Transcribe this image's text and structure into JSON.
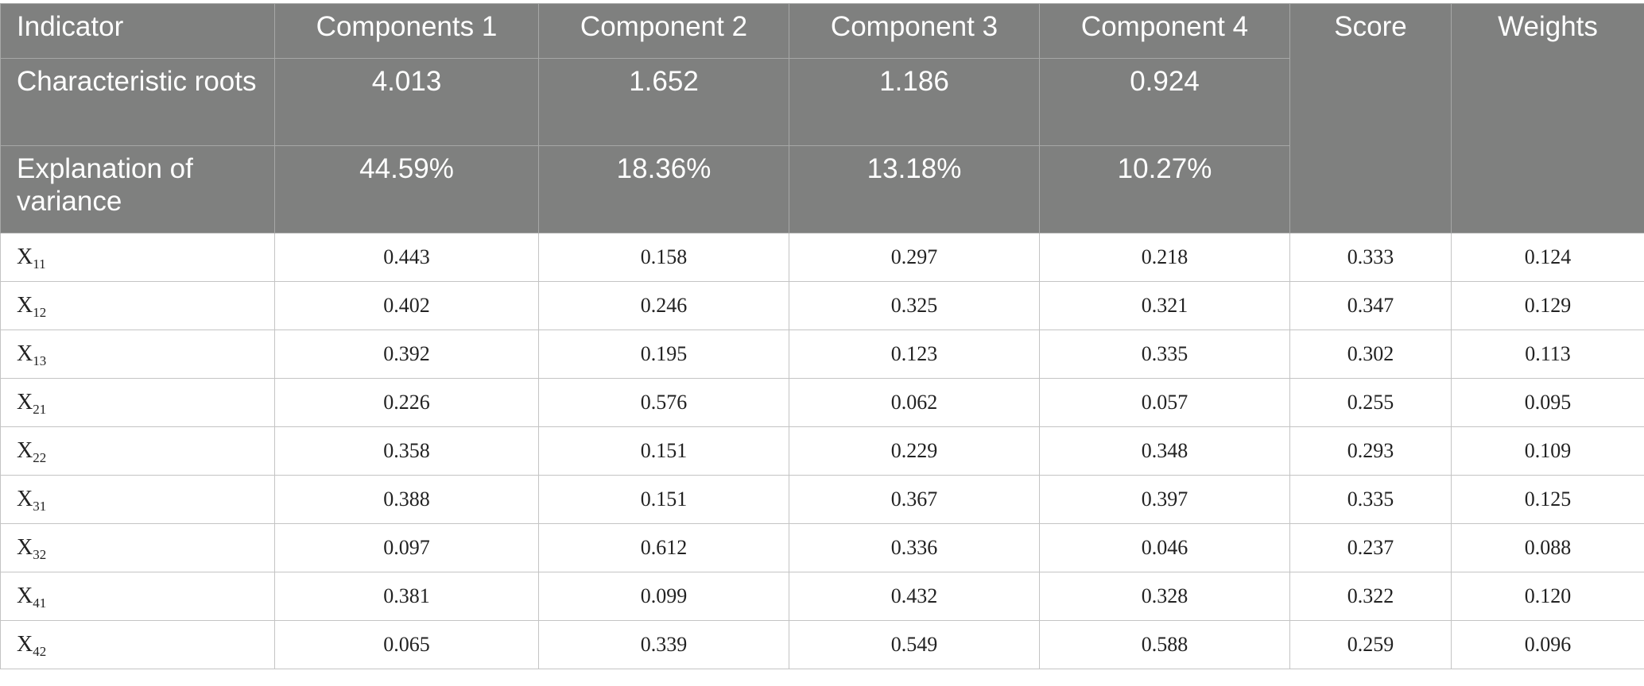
{
  "header": {
    "indicator": "Indicator",
    "components": [
      "Components 1",
      "Component 2",
      "Component 3",
      "Component 4"
    ],
    "score": "Score",
    "weights": "Weights"
  },
  "characteristic_roots": {
    "label": "Characteristic roots",
    "values": [
      "4.013",
      "1.652",
      "1.186",
      "0.924"
    ]
  },
  "explanation_of_variance": {
    "label": "Explanation of variance",
    "values": [
      "44.59%",
      "18.36%",
      "13.18%",
      "10.27%"
    ]
  },
  "rows": [
    {
      "base": "X",
      "sub": "11",
      "values": [
        "0.443",
        "0.158",
        "0.297",
        "0.218",
        "0.333",
        "0.124"
      ]
    },
    {
      "base": "X",
      "sub": "12",
      "values": [
        "0.402",
        "0.246",
        "0.325",
        "0.321",
        "0.347",
        "0.129"
      ]
    },
    {
      "base": "X",
      "sub": "13",
      "values": [
        "0.392",
        "0.195",
        "0.123",
        "0.335",
        "0.302",
        "0.113"
      ]
    },
    {
      "base": "X",
      "sub": "21",
      "values": [
        "0.226",
        "0.576",
        "0.062",
        "0.057",
        "0.255",
        "0.095"
      ]
    },
    {
      "base": "X",
      "sub": "22",
      "values": [
        "0.358",
        "0.151",
        "0.229",
        "0.348",
        "0.293",
        "0.109"
      ]
    },
    {
      "base": "X",
      "sub": "31",
      "values": [
        "0.388",
        "0.151",
        "0.367",
        "0.397",
        "0.335",
        "0.125"
      ]
    },
    {
      "base": "X",
      "sub": "32",
      "values": [
        "0.097",
        "0.612",
        "0.336",
        "0.046",
        "0.237",
        "0.088"
      ]
    },
    {
      "base": "X",
      "sub": "41",
      "values": [
        "0.381",
        "0.099",
        "0.432",
        "0.328",
        "0.322",
        "0.120"
      ]
    },
    {
      "base": "X",
      "sub": "42",
      "values": [
        "0.065",
        "0.339",
        "0.549",
        "0.588",
        "0.259",
        "0.096"
      ]
    }
  ],
  "colors": {
    "header_bg": "#7f807f",
    "header_text": "#ffffff",
    "grid": "#c4c4c4"
  }
}
